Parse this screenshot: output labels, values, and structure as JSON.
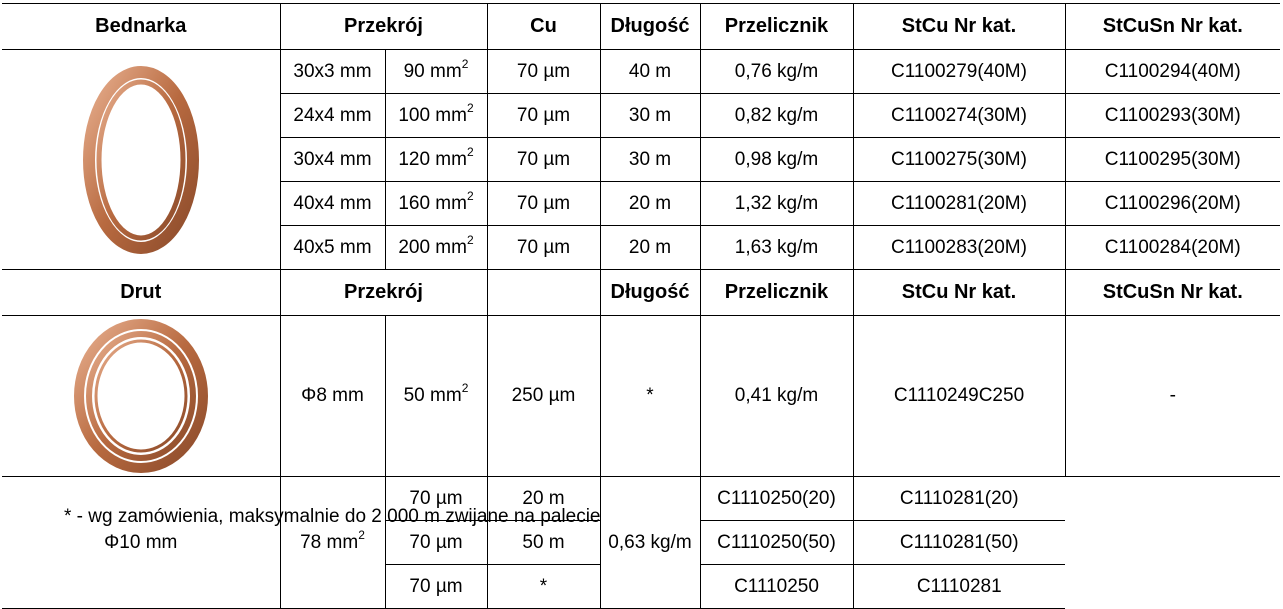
{
  "bednarka": {
    "header": [
      "Bednarka",
      "Przekrój",
      "Cu",
      "Długość",
      "Przelicznik",
      "StCu Nr kat.",
      "StCuSn Nr kat."
    ],
    "rows": [
      {
        "dim": "30x3 mm",
        "area": "90 mm",
        "cu": "70 µm",
        "len": "40 m",
        "conv": "0,76 kg/m",
        "stcu": "C1100279(40M)",
        "stcusn": "C1100294(40M)"
      },
      {
        "dim": "24x4 mm",
        "area": "100 mm",
        "cu": "70 µm",
        "len": "30 m",
        "conv": "0,82 kg/m",
        "stcu": "C1100274(30M)",
        "stcusn": "C1100293(30M)"
      },
      {
        "dim": "30x4 mm",
        "area": "120 mm",
        "cu": "70 µm",
        "len": "30 m",
        "conv": "0,98 kg/m",
        "stcu": "C1100275(30M)",
        "stcusn": "C1100295(30M)"
      },
      {
        "dim": "40x4 mm",
        "area": "160 mm",
        "cu": "70 µm",
        "len": "20 m",
        "conv": "1,32 kg/m",
        "stcu": "C1100281(20M)",
        "stcusn": "C1100296(20M)"
      },
      {
        "dim": "40x5 mm",
        "area": "200 mm",
        "cu": "70 µm",
        "len": "20 m",
        "conv": "1,63 kg/m",
        "stcu": "C1100283(20M)",
        "stcusn": "C1100284(20M)"
      }
    ]
  },
  "drut": {
    "header": [
      "Drut",
      "Przekrój",
      "",
      "Długość",
      "Przelicznik",
      "StCu Nr kat.",
      "StCuSn Nr kat."
    ],
    "row1": {
      "dim": "Φ8 mm",
      "area": "50 mm",
      "cu": "250 µm",
      "len": "*",
      "conv": "0,41 kg/m",
      "stcu": "C1110249C250",
      "stcusn": "-"
    },
    "group": {
      "dim": "Φ10 mm",
      "area": "78 mm",
      "conv": "0,63 kg/m",
      "rows": [
        {
          "cu": "70 µm",
          "len": "20 m",
          "stcu": "C1110250(20)",
          "stcusn": "C1110281(20)"
        },
        {
          "cu": "70 µm",
          "len": "50 m",
          "stcu": "C1110250(50)",
          "stcusn": "C1110281(50)"
        },
        {
          "cu": "70 µm",
          "len": "*",
          "stcu": "C1110250",
          "stcusn": "C1110281"
        }
      ]
    }
  },
  "sup": "2",
  "footnote": "* - wg zamówienia, maksymalnie do 2 000 m zwijane na palecie",
  "colors": {
    "copper": "#c8845a",
    "copper_dark": "#8a4a2a"
  }
}
